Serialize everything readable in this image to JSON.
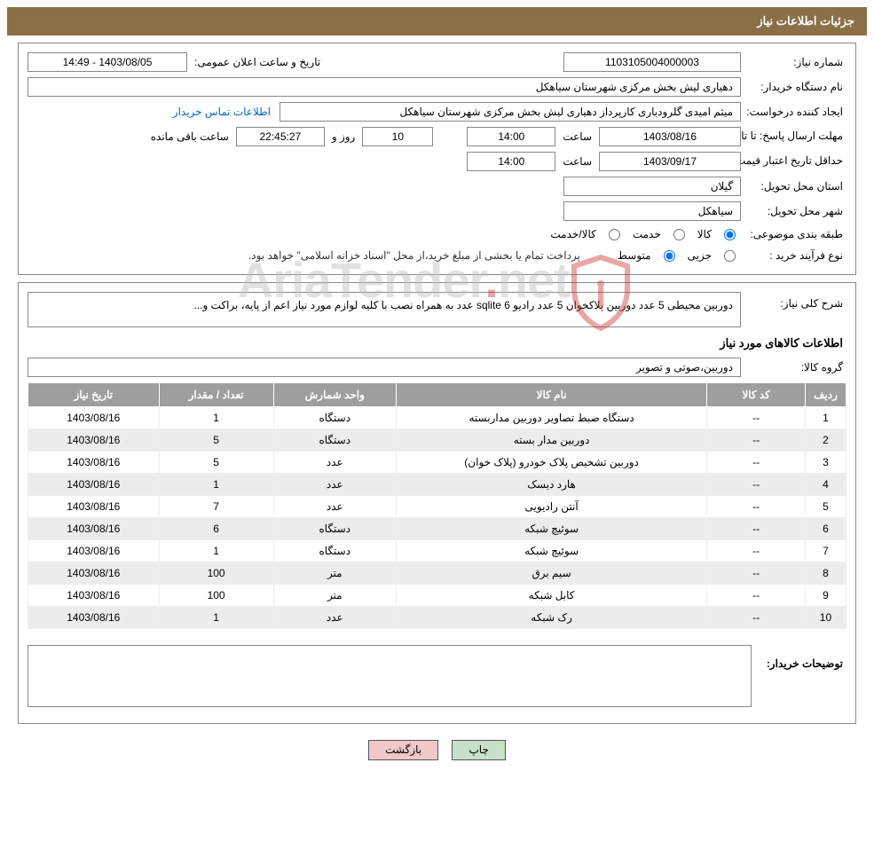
{
  "header": {
    "title": "جزئیات اطلاعات نیاز"
  },
  "labels": {
    "need_no": "شماره نیاز:",
    "announce_dt": "تاریخ و ساعت اعلان عمومی:",
    "buyer_org": "نام دستگاه خریدار:",
    "requester": "ایجاد کننده درخواست:",
    "contact_link": "اطلاعات تماس خریدار",
    "deadline": "مهلت ارسال پاسخ:",
    "until_date": "تا تاریخ:",
    "time": "ساعت",
    "days_and": "روز و",
    "time_left": "ساعت باقی مانده",
    "min_valid": "حداقل تاریخ اعتبار قیمت:",
    "delivery_province": "استان محل تحویل:",
    "delivery_city": "شهر محل تحویل:",
    "subject_class": "طبقه بندی موضوعی:",
    "goods": "کالا",
    "service": "خدمت",
    "goods_service": "کالا/خدمت",
    "purchase_type": "نوع فرآیند خرید :",
    "partial": "جزیی",
    "medium": "متوسط",
    "purchase_note": "پرداخت تمام یا بخشی از مبلغ خرید،از محل \"اسناد خزانه اسلامی\" خواهد بود.",
    "need_desc": "شرح کلی نیاز:",
    "items_info": "اطلاعات کالاهای مورد نیاز",
    "goods_group": "گروه کالا:",
    "buyer_comment": "توضیحات خریدار:",
    "print": "چاپ",
    "back": "بازگشت"
  },
  "values": {
    "need_no": "1103105004000003",
    "announce_dt": "1403/08/05 - 14:49",
    "buyer_org": "دهیاری لیش بخش مرکزی شهرستان سیاهکل",
    "requester": "میثم امیدی گلرودباری کارپرداز دهیاری لیش بخش مرکزی شهرستان سیاهکل",
    "deadline_date": "1403/08/16",
    "deadline_time": "14:00",
    "days_left": "10",
    "time_left": "22:45:27",
    "min_valid_date": "1403/09/17",
    "min_valid_time": "14:00",
    "province": "گیلان",
    "city": "سیاهکل",
    "need_desc": "دوربین محیطی 5 عدد دوربین پلاکخوان 5 عدد رادیو sqlite 6 عدد  به همراه نصب با کلیه لوازم مورد نیاز اعم از پایه، براکت و...",
    "goods_group": "دوربین،صوتی و تصویر"
  },
  "table": {
    "headers": {
      "idx": "ردیف",
      "code": "کد کالا",
      "name": "نام کالا",
      "unit": "واحد شمارش",
      "qty": "تعداد / مقدار",
      "date": "تاریخ نیاز"
    },
    "rows": [
      {
        "idx": "1",
        "code": "--",
        "name": "دستگاه ضبط تصاویر دوربین مداربسته",
        "unit": "دستگاه",
        "qty": "1",
        "date": "1403/08/16"
      },
      {
        "idx": "2",
        "code": "--",
        "name": "دوربین مدار بسته",
        "unit": "دستگاه",
        "qty": "5",
        "date": "1403/08/16"
      },
      {
        "idx": "3",
        "code": "--",
        "name": "دوربین تشخیص پلاک خودرو (پلاک خوان)",
        "unit": "عدد",
        "qty": "5",
        "date": "1403/08/16"
      },
      {
        "idx": "4",
        "code": "--",
        "name": "هارد دیسک",
        "unit": "عدد",
        "qty": "1",
        "date": "1403/08/16"
      },
      {
        "idx": "5",
        "code": "--",
        "name": "آنتن رادیویی",
        "unit": "عدد",
        "qty": "7",
        "date": "1403/08/16"
      },
      {
        "idx": "6",
        "code": "--",
        "name": "سوئیچ شبکه",
        "unit": "دستگاه",
        "qty": "6",
        "date": "1403/08/16"
      },
      {
        "idx": "7",
        "code": "--",
        "name": "سوئیچ شبکه",
        "unit": "دستگاه",
        "qty": "1",
        "date": "1403/08/16"
      },
      {
        "idx": "8",
        "code": "--",
        "name": "سیم برق",
        "unit": "متر",
        "qty": "100",
        "date": "1403/08/16"
      },
      {
        "idx": "9",
        "code": "--",
        "name": "کابل شبکه",
        "unit": "متر",
        "qty": "100",
        "date": "1403/08/16"
      },
      {
        "idx": "10",
        "code": "--",
        "name": "رک شبکه",
        "unit": "عدد",
        "qty": "1",
        "date": "1403/08/16"
      }
    ]
  },
  "watermark": {
    "t1": "AriaTender",
    "t2": "net"
  }
}
